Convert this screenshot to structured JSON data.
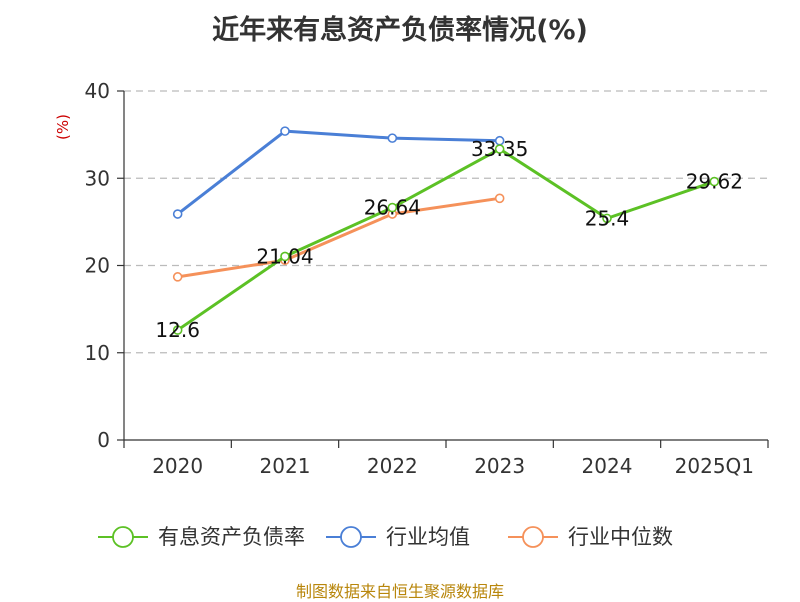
{
  "title": "近年来有息资产负债率情况(%)",
  "footer": "制图数据来自恒生聚源数据库",
  "colors": {
    "title": "#333333",
    "footer": "#b8860b",
    "unit": "#cc0000",
    "grid": "#bbbbbb",
    "axis": "#333333"
  },
  "chart_data": {
    "type": "line",
    "categories": [
      "2020",
      "2021",
      "2022",
      "2023",
      "2024",
      "2025Q1"
    ],
    "ylabel": "(%)",
    "ylim": [
      0,
      40
    ],
    "yticks": [
      0,
      10,
      20,
      30,
      40
    ],
    "grid": "horizontal dashed",
    "legend_position": "bottom",
    "series": [
      {
        "name": "有息资产负债率",
        "color": "#5cc125",
        "values": [
          12.6,
          21.04,
          26.64,
          33.35,
          25.4,
          29.62
        ],
        "labels": [
          "12.6",
          "21.04",
          "26.64",
          "33.35",
          "25.4",
          "29.62"
        ]
      },
      {
        "name": "行业均值",
        "color": "#4a7fd6",
        "values": [
          25.9,
          35.4,
          34.6,
          34.3,
          null,
          null
        ]
      },
      {
        "name": "行业中位数",
        "color": "#f5915a",
        "values": [
          18.7,
          20.6,
          25.9,
          27.7,
          null,
          null
        ]
      }
    ]
  }
}
